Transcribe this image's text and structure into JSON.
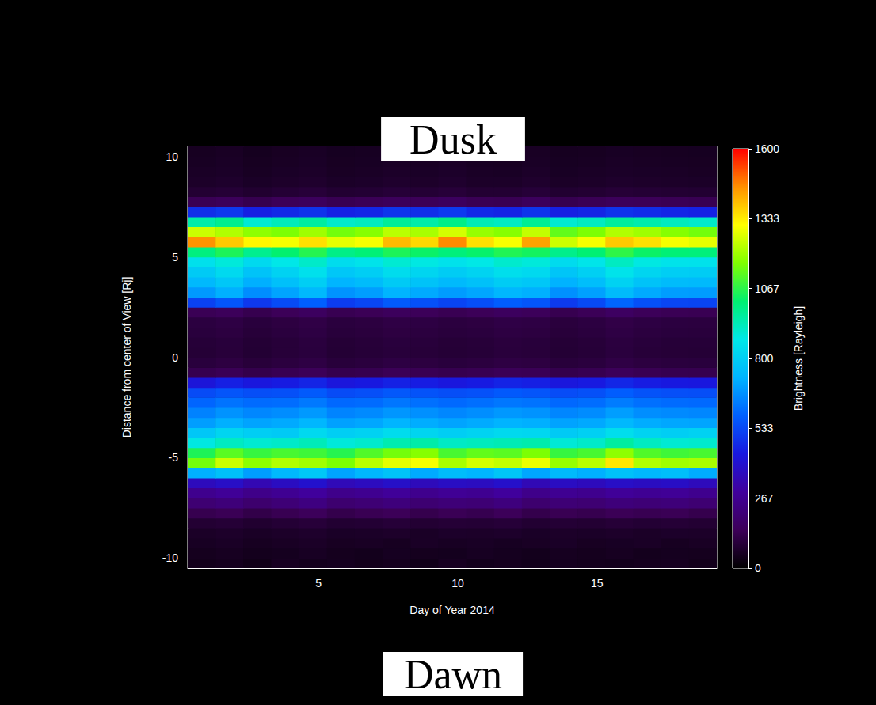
{
  "chart_data": {
    "type": "heatmap",
    "x_label": "Day of Year 2014",
    "y_label": "Distance from center of View [Rj]",
    "annotations": [
      "Dusk",
      "Dawn"
    ],
    "xlim": [
      0.3,
      19.3
    ],
    "xticks": [
      5,
      10,
      15
    ],
    "ylim": [
      -10.5,
      10.5
    ],
    "yticks": [
      -10,
      -5,
      0,
      5,
      10
    ],
    "x": [
      0.8,
      1.8,
      2.8,
      3.8,
      4.8,
      5.8,
      6.8,
      7.8,
      8.8,
      9.8,
      10.8,
      11.8,
      12.8,
      13.8,
      14.8,
      15.8,
      16.8,
      17.8,
      18.8
    ],
    "y": [
      -10.25,
      -9.75,
      -9.25,
      -8.75,
      -8.25,
      -7.75,
      -7.25,
      -6.75,
      -6.25,
      -5.75,
      -5.25,
      -4.75,
      -4.25,
      -3.75,
      -3.25,
      -2.75,
      -2.25,
      -1.75,
      -1.25,
      -0.75,
      -0.25,
      0.25,
      0.75,
      1.25,
      1.75,
      2.25,
      2.75,
      3.25,
      3.75,
      4.25,
      4.75,
      5.25,
      5.75,
      6.25,
      6.75,
      7.25,
      7.75,
      8.25,
      8.75,
      9.25,
      9.75,
      10.25
    ],
    "values": [
      [
        45,
        50,
        40,
        55,
        48,
        52,
        45,
        50,
        42,
        55,
        47,
        50,
        44,
        52,
        48,
        46,
        50,
        53,
        45
      ],
      [
        50,
        55,
        48,
        52,
        58,
        50,
        46,
        54,
        50,
        49,
        56,
        51,
        47,
        53,
        50,
        55,
        48,
        52,
        50
      ],
      [
        58,
        62,
        55,
        60,
        65,
        57,
        60,
        55,
        63,
        58,
        61,
        56,
        60,
        64,
        57,
        59,
        62,
        55,
        60
      ],
      [
        65,
        70,
        62,
        68,
        72,
        64,
        66,
        70,
        63,
        69,
        67,
        71,
        64,
        68,
        66,
        70,
        65,
        69,
        67
      ],
      [
        85,
        90,
        80,
        88,
        95,
        82,
        86,
        92,
        84,
        89,
        87,
        93,
        83,
        88,
        85,
        91,
        86,
        90,
        84
      ],
      [
        130,
        140,
        120,
        135,
        150,
        125,
        138,
        145,
        128,
        140,
        132,
        148,
        126,
        137,
        130,
        142,
        135,
        140,
        128
      ],
      [
        200,
        215,
        190,
        210,
        230,
        195,
        205,
        220,
        198,
        212,
        206,
        225,
        192,
        208,
        200,
        218,
        210,
        215,
        200
      ],
      [
        260,
        280,
        250,
        270,
        290,
        255,
        265,
        285,
        258,
        275,
        268,
        290,
        252,
        270,
        262,
        282,
        272,
        278,
        260
      ],
      [
        360,
        380,
        340,
        370,
        395,
        350,
        365,
        385,
        355,
        375,
        368,
        390,
        345,
        372,
        360,
        380,
        370,
        378,
        358
      ],
      [
        720,
        760,
        690,
        740,
        780,
        700,
        735,
        770,
        710,
        750,
        730,
        775,
        705,
        745,
        720,
        765,
        740,
        755,
        715
      ],
      [
        1150,
        1250,
        1180,
        1220,
        1200,
        1160,
        1230,
        1280,
        1300,
        1210,
        1260,
        1240,
        1290,
        1190,
        1230,
        1340,
        1220,
        1200,
        1210
      ],
      [
        1050,
        1120,
        1080,
        1100,
        1090,
        1060,
        1110,
        1150,
        1170,
        1100,
        1130,
        1120,
        1160,
        1080,
        1100,
        1180,
        1110,
        1090,
        1100
      ],
      [
        880,
        920,
        900,
        910,
        930,
        890,
        905,
        940,
        950,
        915,
        925,
        935,
        945,
        895,
        910,
        960,
        920,
        900,
        905
      ],
      [
        780,
        820,
        800,
        790,
        830,
        800,
        810,
        840,
        820,
        800,
        815,
        830,
        825,
        790,
        805,
        845,
        815,
        800,
        810
      ],
      [
        690,
        720,
        700,
        710,
        735,
        695,
        705,
        730,
        715,
        700,
        712,
        728,
        720,
        698,
        708,
        740,
        715,
        705,
        702
      ],
      [
        640,
        670,
        650,
        660,
        680,
        645,
        655,
        675,
        665,
        650,
        662,
        678,
        670,
        648,
        658,
        690,
        662,
        655,
        650
      ],
      [
        590,
        615,
        600,
        605,
        625,
        595,
        600,
        620,
        610,
        598,
        608,
        622,
        615,
        596,
        604,
        630,
        610,
        600,
        598
      ],
      [
        540,
        560,
        545,
        550,
        570,
        540,
        548,
        565,
        555,
        545,
        552,
        568,
        560,
        542,
        550,
        575,
        555,
        548,
        545
      ],
      [
        420,
        450,
        430,
        440,
        460,
        425,
        435,
        455,
        445,
        430,
        440,
        458,
        450,
        428,
        438,
        465,
        445,
        435,
        432
      ],
      [
        130,
        140,
        125,
        135,
        145,
        128,
        132,
        142,
        138,
        130,
        136,
        144,
        140,
        127,
        134,
        148,
        138,
        132,
        130
      ],
      [
        100,
        108,
        96,
        104,
        112,
        98,
        102,
        110,
        106,
        100,
        104,
        111,
        108,
        97,
        103,
        114,
        106,
        102,
        100
      ],
      [
        90,
        96,
        86,
        94,
        100,
        88,
        92,
        98,
        95,
        90,
        93,
        99,
        96,
        87,
        92,
        102,
        95,
        91,
        90
      ],
      [
        92,
        98,
        88,
        95,
        102,
        90,
        94,
        100,
        97,
        91,
        95,
        101,
        98,
        89,
        94,
        104,
        97,
        93,
        92
      ],
      [
        100,
        106,
        95,
        103,
        110,
        97,
        101,
        108,
        104,
        99,
        103,
        109,
        106,
        96,
        102,
        112,
        104,
        100,
        99
      ],
      [
        105,
        112,
        100,
        108,
        116,
        102,
        106,
        114,
        110,
        104,
        108,
        115,
        112,
        101,
        107,
        118,
        110,
        105,
        104
      ],
      [
        140,
        150,
        130,
        145,
        160,
        135,
        142,
        155,
        148,
        138,
        146,
        158,
        150,
        133,
        144,
        165,
        148,
        140,
        138
      ],
      [
        520,
        560,
        500,
        540,
        580,
        510,
        530,
        570,
        550,
        525,
        545,
        575,
        560,
        505,
        535,
        590,
        550,
        530,
        525
      ],
      [
        680,
        720,
        660,
        700,
        740,
        670,
        690,
        730,
        710,
        685,
        705,
        735,
        720,
        665,
        695,
        750,
        710,
        690,
        685
      ],
      [
        740,
        780,
        720,
        760,
        800,
        730,
        750,
        790,
        770,
        745,
        765,
        795,
        780,
        725,
        755,
        810,
        770,
        750,
        745
      ],
      [
        790,
        830,
        770,
        810,
        850,
        780,
        800,
        840,
        820,
        795,
        815,
        845,
        830,
        775,
        805,
        860,
        820,
        800,
        795
      ],
      [
        850,
        890,
        830,
        870,
        910,
        840,
        860,
        900,
        880,
        855,
        875,
        905,
        890,
        835,
        865,
        920,
        880,
        860,
        855
      ],
      [
        1000,
        1050,
        980,
        1020,
        1060,
        990,
        1010,
        1050,
        1030,
        1005,
        1025,
        1055,
        1040,
        985,
        1015,
        1070,
        1030,
        1010,
        1005
      ],
      [
        1450,
        1380,
        1320,
        1300,
        1350,
        1280,
        1300,
        1400,
        1360,
        1460,
        1350,
        1300,
        1430,
        1250,
        1300,
        1380,
        1350,
        1300,
        1280
      ],
      [
        1250,
        1220,
        1180,
        1160,
        1200,
        1150,
        1170,
        1230,
        1210,
        1260,
        1190,
        1170,
        1240,
        1130,
        1160,
        1220,
        1200,
        1170,
        1150
      ],
      [
        950,
        980,
        900,
        930,
        960,
        910,
        925,
        970,
        950,
        990,
        935,
        920,
        975,
        900,
        920,
        965,
        945,
        925,
        910
      ],
      [
        480,
        500,
        450,
        470,
        490,
        455,
        465,
        495,
        480,
        505,
        470,
        460,
        495,
        450,
        462,
        490,
        478,
        465,
        455
      ],
      [
        140,
        150,
        130,
        145,
        155,
        135,
        142,
        152,
        146,
        158,
        140,
        138,
        154,
        132,
        140,
        150,
        145,
        140,
        136
      ],
      [
        85,
        90,
        80,
        88,
        94,
        82,
        86,
        92,
        88,
        95,
        85,
        84,
        93,
        81,
        85,
        91,
        88,
        85,
        83
      ],
      [
        68,
        72,
        64,
        70,
        75,
        66,
        69,
        74,
        70,
        76,
        68,
        67,
        74,
        65,
        68,
        73,
        70,
        68,
        66
      ],
      [
        62,
        66,
        58,
        64,
        68,
        60,
        63,
        67,
        64,
        69,
        62,
        61,
        67,
        59,
        62,
        66,
        64,
        62,
        60
      ],
      [
        58,
        62,
        55,
        60,
        64,
        57,
        59,
        63,
        60,
        65,
        58,
        57,
        63,
        56,
        58,
        62,
        60,
        58,
        57
      ],
      [
        55,
        60,
        52,
        57,
        61,
        54,
        56,
        60,
        57,
        62,
        55,
        54,
        60,
        53,
        55,
        59,
        57,
        55,
        54
      ]
    ],
    "colorbar": {
      "label": "Brightness [Rayleigh]",
      "range": [
        0,
        1600
      ],
      "ticks": [
        0,
        267,
        533,
        800,
        1067,
        1333,
        1600
      ]
    }
  }
}
